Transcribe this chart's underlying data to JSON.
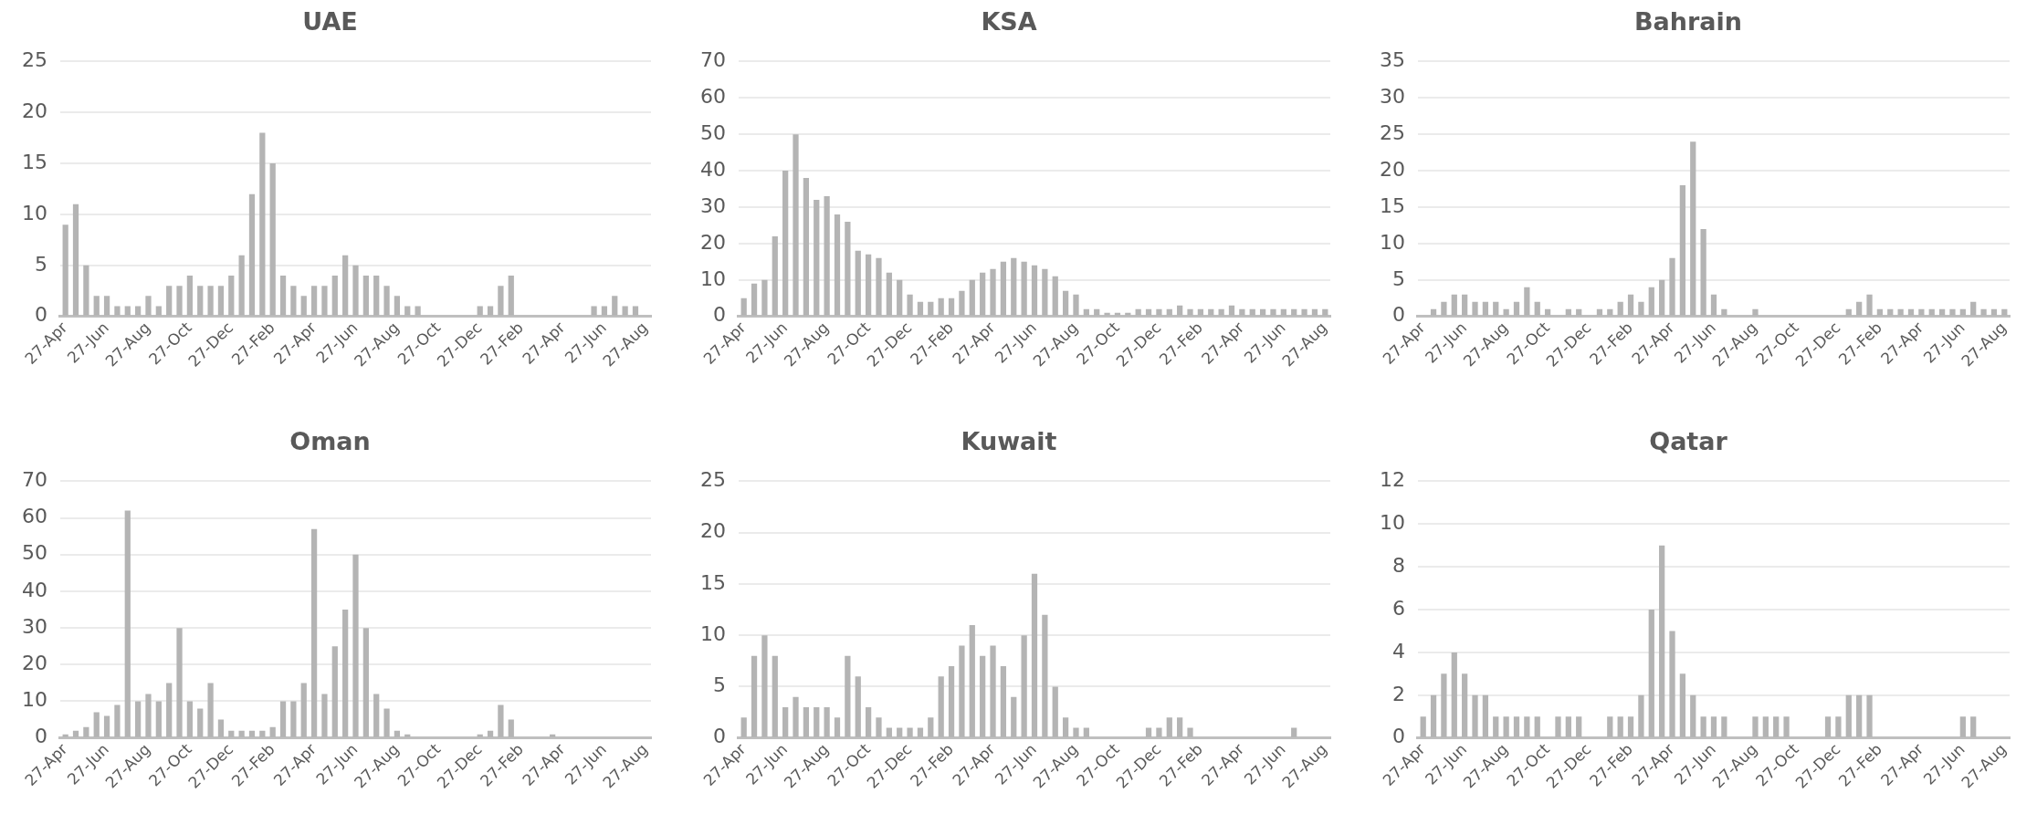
{
  "chart_data": [
    {
      "type": "bar",
      "title": "UAE",
      "color": "#b4b4b4",
      "grid": "y",
      "categories": [
        "27-Apr",
        null,
        null,
        null,
        "27-Jun",
        null,
        null,
        null,
        "27-Aug",
        null,
        null,
        null,
        "27-Oct",
        null,
        null,
        null,
        "27-Dec",
        null,
        null,
        null,
        "27-Feb",
        null,
        null,
        null,
        "27-Apr",
        null,
        null,
        null,
        "27-Jun",
        null,
        null,
        null,
        "27-Aug",
        null,
        null,
        null,
        "27-Oct",
        null,
        null,
        null,
        "27-Dec",
        null,
        null,
        null,
        "27-Feb",
        null,
        null,
        null,
        "27-Apr",
        null,
        null,
        null,
        "27-Jun",
        null,
        null,
        null,
        "27-Aug"
      ],
      "values": [
        9,
        11,
        5,
        2,
        2,
        1,
        1,
        1,
        2,
        1,
        3,
        3,
        4,
        3,
        3,
        3,
        4,
        6,
        12,
        18,
        15,
        4,
        3,
        2,
        3,
        3,
        4,
        6,
        5,
        4,
        4,
        3,
        2,
        1,
        1,
        0,
        0,
        0,
        0,
        0,
        1,
        1,
        3,
        4,
        0,
        0,
        0,
        0,
        0,
        0,
        0,
        1,
        1,
        2,
        1,
        1,
        0
      ],
      "ylim": [
        0,
        25
      ],
      "yticks": [
        0,
        5,
        10,
        15,
        20,
        25
      ]
    },
    {
      "type": "bar",
      "title": "KSA",
      "color": "#b4b4b4",
      "grid": "y",
      "categories": [
        "27-Apr",
        null,
        null,
        null,
        "27-Jun",
        null,
        null,
        null,
        "27-Aug",
        null,
        null,
        null,
        "27-Oct",
        null,
        null,
        null,
        "27-Dec",
        null,
        null,
        null,
        "27-Feb",
        null,
        null,
        null,
        "27-Apr",
        null,
        null,
        null,
        "27-Jun",
        null,
        null,
        null,
        "27-Aug",
        null,
        null,
        null,
        "27-Oct",
        null,
        null,
        null,
        "27-Dec",
        null,
        null,
        null,
        "27-Feb",
        null,
        null,
        null,
        "27-Apr",
        null,
        null,
        null,
        "27-Jun",
        null,
        null,
        null,
        "27-Aug"
      ],
      "values": [
        5,
        9,
        10,
        22,
        40,
        50,
        38,
        32,
        33,
        28,
        26,
        18,
        17,
        16,
        12,
        10,
        6,
        4,
        4,
        5,
        5,
        7,
        10,
        12,
        13,
        15,
        16,
        15,
        14,
        13,
        11,
        7,
        6,
        2,
        2,
        1,
        1,
        1,
        2,
        2,
        2,
        2,
        3,
        2,
        2,
        2,
        2,
        3,
        2,
        2,
        2,
        2,
        2,
        2,
        2,
        2,
        2
      ],
      "ylim": [
        0,
        70
      ],
      "yticks": [
        0,
        10,
        20,
        30,
        40,
        50,
        60,
        70
      ]
    },
    {
      "type": "bar",
      "title": "Bahrain",
      "color": "#b4b4b4",
      "grid": "y",
      "categories": [
        "27-Apr",
        null,
        null,
        null,
        "27-Jun",
        null,
        null,
        null,
        "27-Aug",
        null,
        null,
        null,
        "27-Oct",
        null,
        null,
        null,
        "27-Dec",
        null,
        null,
        null,
        "27-Feb",
        null,
        null,
        null,
        "27-Apr",
        null,
        null,
        null,
        "27-Jun",
        null,
        null,
        null,
        "27-Aug",
        null,
        null,
        null,
        "27-Oct",
        null,
        null,
        null,
        "27-Dec",
        null,
        null,
        null,
        "27-Feb",
        null,
        null,
        null,
        "27-Apr",
        null,
        null,
        null,
        "27-Jun",
        null,
        null,
        null,
        "27-Aug"
      ],
      "values": [
        0,
        1,
        2,
        3,
        3,
        2,
        2,
        2,
        1,
        2,
        4,
        2,
        1,
        0,
        1,
        1,
        0,
        1,
        1,
        2,
        3,
        2,
        4,
        5,
        8,
        18,
        24,
        12,
        3,
        1,
        0,
        0,
        1,
        0,
        0,
        0,
        0,
        0,
        0,
        0,
        0,
        1,
        2,
        3,
        1,
        1,
        1,
        1,
        1,
        1,
        1,
        1,
        1,
        2,
        1,
        1,
        1
      ],
      "ylim": [
        0,
        35
      ],
      "yticks": [
        0,
        5,
        10,
        15,
        20,
        25,
        30,
        35
      ]
    },
    {
      "type": "bar",
      "title": "Oman",
      "color": "#b4b4b4",
      "grid": "y",
      "categories": [
        "27-Apr",
        null,
        null,
        null,
        "27-Jun",
        null,
        null,
        null,
        "27-Aug",
        null,
        null,
        null,
        "27-Oct",
        null,
        null,
        null,
        "27-Dec",
        null,
        null,
        null,
        "27-Feb",
        null,
        null,
        null,
        "27-Apr",
        null,
        null,
        null,
        "27-Jun",
        null,
        null,
        null,
        "27-Aug",
        null,
        null,
        null,
        "27-Oct",
        null,
        null,
        null,
        "27-Dec",
        null,
        null,
        null,
        "27-Feb",
        null,
        null,
        null,
        "27-Apr",
        null,
        null,
        null,
        "27-Jun",
        null,
        null,
        null,
        "27-Aug"
      ],
      "values": [
        1,
        2,
        3,
        7,
        6,
        9,
        62,
        10,
        12,
        10,
        15,
        30,
        10,
        8,
        15,
        5,
        2,
        2,
        2,
        2,
        3,
        10,
        10,
        15,
        57,
        12,
        25,
        35,
        50,
        30,
        12,
        8,
        2,
        1,
        0,
        0,
        0,
        0,
        0,
        0,
        1,
        2,
        9,
        5,
        0,
        0,
        0,
        1,
        0,
        0,
        0,
        0,
        0,
        0,
        0,
        0,
        0
      ],
      "ylim": [
        0,
        70
      ],
      "yticks": [
        0,
        10,
        20,
        30,
        40,
        50,
        60,
        70
      ]
    },
    {
      "type": "bar",
      "title": "Kuwait",
      "color": "#b4b4b4",
      "grid": "y",
      "categories": [
        "27-Apr",
        null,
        null,
        null,
        "27-Jun",
        null,
        null,
        null,
        "27-Aug",
        null,
        null,
        null,
        "27-Oct",
        null,
        null,
        null,
        "27-Dec",
        null,
        null,
        null,
        "27-Feb",
        null,
        null,
        null,
        "27-Apr",
        null,
        null,
        null,
        "27-Jun",
        null,
        null,
        null,
        "27-Aug",
        null,
        null,
        null,
        "27-Oct",
        null,
        null,
        null,
        "27-Dec",
        null,
        null,
        null,
        "27-Feb",
        null,
        null,
        null,
        "27-Apr",
        null,
        null,
        null,
        "27-Jun",
        null,
        null,
        null,
        "27-Aug"
      ],
      "values": [
        2,
        8,
        10,
        8,
        3,
        4,
        3,
        3,
        3,
        2,
        8,
        6,
        3,
        2,
        1,
        1,
        1,
        1,
        2,
        6,
        7,
        9,
        11,
        8,
        9,
        7,
        4,
        10,
        16,
        12,
        5,
        2,
        1,
        1,
        0,
        0,
        0,
        0,
        0,
        1,
        1,
        2,
        2,
        1,
        0,
        0,
        0,
        0,
        0,
        0,
        0,
        0,
        0,
        1,
        0,
        0,
        0
      ],
      "ylim": [
        0,
        25
      ],
      "yticks": [
        0,
        5,
        10,
        15,
        20,
        25
      ]
    },
    {
      "type": "bar",
      "title": "Qatar",
      "color": "#b4b4b4",
      "grid": "y",
      "categories": [
        "27-Apr",
        null,
        null,
        null,
        "27-Jun",
        null,
        null,
        null,
        "27-Aug",
        null,
        null,
        null,
        "27-Oct",
        null,
        null,
        null,
        "27-Dec",
        null,
        null,
        null,
        "27-Feb",
        null,
        null,
        null,
        "27-Apr",
        null,
        null,
        null,
        "27-Jun",
        null,
        null,
        null,
        "27-Aug",
        null,
        null,
        null,
        "27-Oct",
        null,
        null,
        null,
        "27-Dec",
        null,
        null,
        null,
        "27-Feb",
        null,
        null,
        null,
        "27-Apr",
        null,
        null,
        null,
        "27-Jun",
        null,
        null,
        null,
        "27-Aug"
      ],
      "values": [
        1,
        2,
        3,
        4,
        3,
        2,
        2,
        1,
        1,
        1,
        1,
        1,
        0,
        1,
        1,
        1,
        0,
        0,
        1,
        1,
        1,
        2,
        6,
        9,
        5,
        3,
        2,
        1,
        1,
        1,
        0,
        0,
        1,
        1,
        1,
        1,
        0,
        0,
        0,
        1,
        1,
        2,
        2,
        2,
        0,
        0,
        0,
        0,
        0,
        0,
        0,
        0,
        1,
        1,
        0,
        0,
        0
      ],
      "ylim": [
        0,
        12
      ],
      "yticks": [
        0,
        2,
        4,
        6,
        8,
        10,
        12
      ]
    }
  ]
}
